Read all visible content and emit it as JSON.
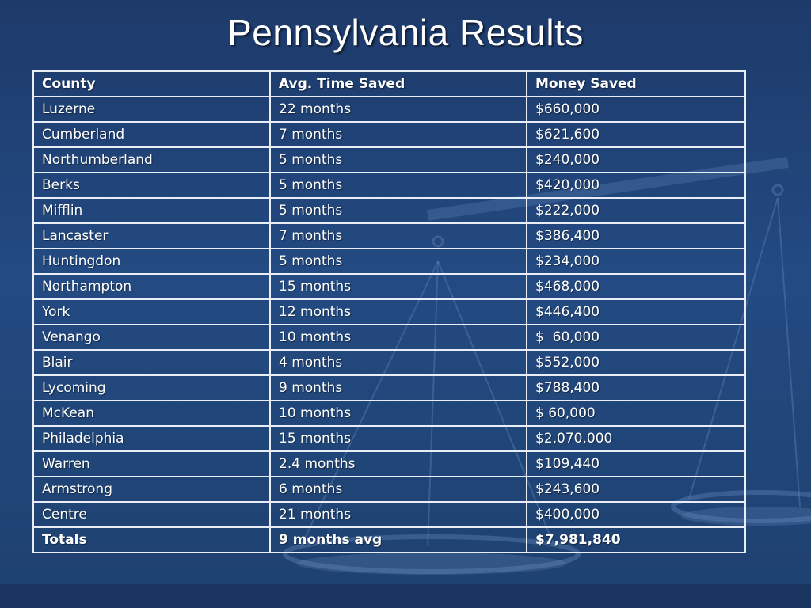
{
  "slide": {
    "title": "Pennsylvania Results"
  },
  "table": {
    "headers": [
      "County",
      "Avg. Time Saved",
      "Money Saved"
    ],
    "rows": [
      [
        "Luzerne",
        "22 months",
        "$660,000"
      ],
      [
        "Cumberland",
        "7 months",
        "$621,600"
      ],
      [
        "Northumberland",
        "5 months",
        "$240,000"
      ],
      [
        "Berks",
        "5 months",
        "$420,000"
      ],
      [
        "Mifflin",
        "5 months",
        "$222,000"
      ],
      [
        "Lancaster",
        "7 months",
        "$386,400"
      ],
      [
        "Huntingdon",
        "5 months",
        "$234,000"
      ],
      [
        "Northampton",
        "15 months",
        "$468,000"
      ],
      [
        "York",
        "12 months",
        "$446,400"
      ],
      [
        "Venango",
        "10 months",
        "$  60,000"
      ],
      [
        "Blair",
        "4 months",
        "$552,000"
      ],
      [
        "Lycoming",
        "9 months",
        "$788,400"
      ],
      [
        "McKean",
        "10 months",
        "$ 60,000"
      ],
      [
        "Philadelphia",
        "15 months",
        "$2,070,000"
      ],
      [
        "Warren",
        "2.4 months",
        "$109,440"
      ],
      [
        "Armstrong",
        "6 months",
        "$243,600"
      ],
      [
        "Centre",
        "21 months",
        "$400,000"
      ]
    ],
    "totals": [
      "Totals",
      "9 months avg",
      "$7,981,840"
    ]
  },
  "background": {
    "decoration": "scales-of-justice-graphic",
    "base_color": "#234a82"
  }
}
